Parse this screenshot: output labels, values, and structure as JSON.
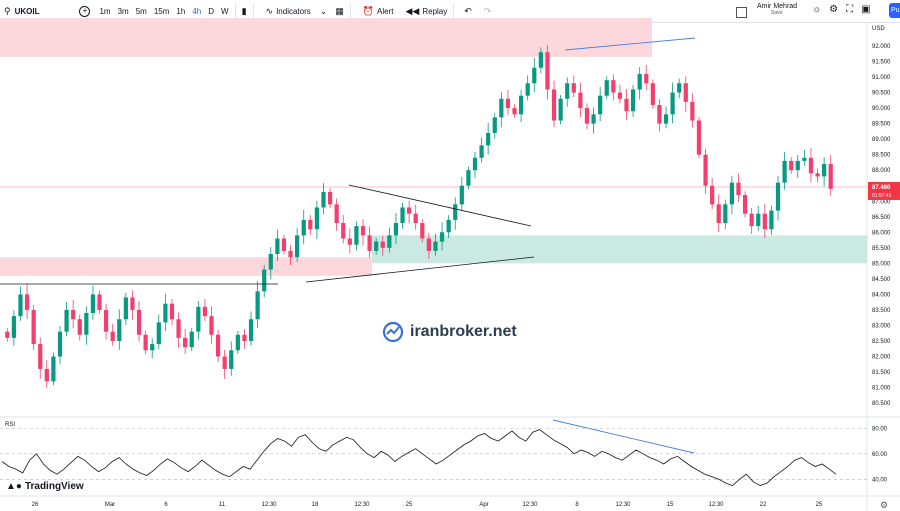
{
  "toolbar": {
    "symbol": "UKOIL",
    "timeframes": [
      "1m",
      "3m",
      "5m",
      "15m",
      "1h",
      "4h",
      "D",
      "W"
    ],
    "active_timeframe": "4h",
    "indicators_label": "Indicators",
    "alert_label": "Alert",
    "replay_label": "Replay",
    "user_name": "Amir Mehrad",
    "user_status": "Save",
    "publish_label": "Pu"
  },
  "icons": [
    "search-icon",
    "plus-icon",
    "candle-type-icon",
    "indicators-icon",
    "layout-icon",
    "alert-icon",
    "replay-icon",
    "undo-icon",
    "redo-icon",
    "checkbox-icon",
    "snapshot-icon",
    "settings-icon",
    "fullscreen-icon",
    "camera-icon"
  ],
  "colors": {
    "up": "#089981",
    "down": "#f23f6d",
    "zone_red": "#fcd8dc",
    "zone_green": "#c9e9e2",
    "price_label": "#f23645",
    "trend_blue": "#4a7fe0"
  },
  "watermark": "iranbroker.net",
  "branding": "TradingView",
  "price_axis": {
    "currency": "USD",
    "ticks": [
      "92.000",
      "91.500",
      "91.000",
      "90.500",
      "90.000",
      "89.500",
      "89.000",
      "88.500",
      "88.000",
      "87.500",
      "87.000",
      "86.500",
      "86.000",
      "85.500",
      "85.000",
      "84.500",
      "84.000",
      "83.500",
      "83.000",
      "82.500",
      "82.000",
      "81.500",
      "81.000",
      "80.500"
    ],
    "last_price_label": "87.460",
    "countdown": "01:57:41"
  },
  "time_axis": [
    "26",
    "Mar",
    "6",
    "11",
    "12:30",
    "18",
    "12:30",
    "25",
    "Apr",
    "12:30",
    "8",
    "12:30",
    "15",
    "12:30",
    "22",
    "25"
  ],
  "rsi": {
    "label": "RSI",
    "ticks": [
      "80.00",
      "60.00",
      "40.00"
    ]
  },
  "chart_data": {
    "type": "candlestick",
    "ylim": [
      80.4,
      92.5
    ],
    "last_price": 87.46,
    "close_path": [
      82.6,
      83.3,
      84.0,
      83.5,
      82.4,
      81.6,
      81.2,
      82.0,
      82.8,
      83.5,
      83.2,
      82.7,
      83.4,
      84.0,
      83.5,
      82.8,
      82.5,
      83.2,
      83.9,
      83.5,
      82.7,
      82.2,
      82.4,
      83.1,
      83.7,
      83.2,
      82.6,
      82.3,
      82.8,
      83.6,
      83.3,
      82.7,
      82.0,
      81.6,
      82.2,
      82.7,
      82.5,
      83.2,
      84.1,
      84.8,
      85.3,
      85.8,
      85.4,
      85.2,
      85.9,
      86.4,
      86.1,
      86.8,
      87.3,
      86.9,
      86.3,
      85.8,
      85.6,
      86.2,
      85.9,
      85.4,
      85.7,
      85.5,
      85.9,
      86.3,
      86.8,
      86.6,
      86.3,
      85.8,
      85.4,
      85.7,
      86.0,
      86.4,
      86.9,
      87.5,
      88.0,
      88.4,
      88.8,
      89.2,
      89.7,
      90.3,
      90.0,
      89.8,
      90.4,
      90.8,
      91.3,
      91.8,
      90.6,
      89.6,
      90.3,
      90.8,
      90.5,
      90.0,
      89.5,
      89.8,
      90.4,
      90.9,
      90.5,
      90.3,
      89.9,
      90.6,
      91.1,
      90.8,
      90.1,
      89.5,
      89.8,
      90.5,
      90.8,
      90.2,
      89.6,
      88.5,
      87.5,
      86.9,
      86.3,
      86.9,
      87.6,
      87.2,
      86.6,
      86.2,
      86.6,
      86.1,
      86.7,
      87.6,
      88.3,
      88.0,
      88.3,
      88.4,
      87.9,
      87.8,
      88.2,
      87.4
    ],
    "zones": [
      {
        "name": "resistance-zone",
        "y0": 91.65,
        "y1": 92.9
      },
      {
        "name": "support-zone-left",
        "y0": 84.6,
        "y1": 85.2
      },
      {
        "name": "demand-zone",
        "y0": 85.0,
        "y1": 85.9
      }
    ],
    "rsi_values": [
      54,
      50,
      48,
      45,
      55,
      60,
      52,
      47,
      44,
      48,
      53,
      58,
      55,
      50,
      46,
      49,
      54,
      57,
      52,
      48,
      45,
      43,
      47,
      52,
      56,
      53,
      49,
      46,
      50,
      55,
      51,
      47,
      44,
      42,
      46,
      50,
      48,
      55,
      62,
      68,
      72,
      70,
      66,
      73,
      75,
      69,
      64,
      62,
      67,
      70,
      73,
      71,
      65,
      60,
      57,
      62,
      59,
      54,
      58,
      61,
      64,
      60,
      56,
      52,
      55,
      59,
      63,
      67,
      70,
      74,
      76,
      72,
      70,
      74,
      78,
      73,
      70,
      77,
      79,
      75,
      71,
      68,
      65,
      60,
      63,
      61,
      58,
      62,
      60,
      57,
      55,
      59,
      63,
      60,
      57,
      55,
      52,
      56,
      58,
      54,
      50,
      47,
      44,
      42,
      40,
      37,
      35,
      40,
      44,
      38,
      35,
      37,
      42,
      46,
      50,
      55,
      57,
      53,
      50,
      52,
      48,
      44
    ],
    "rsi_ylim": [
      30,
      85
    ]
  }
}
